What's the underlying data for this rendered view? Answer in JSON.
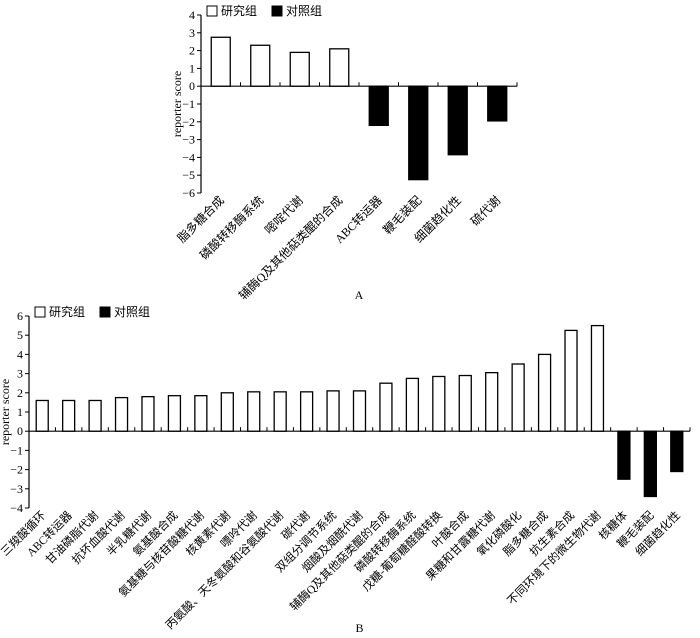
{
  "legend": {
    "study": "研究组",
    "control": "对照组"
  },
  "chart_data": [
    {
      "type": "bar",
      "panel_label": "A",
      "ylabel": "reporter score",
      "ylim": [
        -6,
        4
      ],
      "yticks": [
        4,
        3,
        2,
        1,
        0,
        -1,
        -2,
        -3,
        -4,
        -5,
        -6
      ],
      "categories": [
        "脂多糖合成",
        "磷酸转移酶系统",
        "嘧啶代谢",
        "辅酶Q及其他萜类醌的合成",
        "ABC转运器",
        "鞭毛装配",
        "细菌趋化性",
        "硫代谢"
      ],
      "values": [
        2.75,
        2.3,
        1.9,
        2.1,
        -2.2,
        -5.25,
        -3.85,
        -1.95
      ],
      "groups": [
        "研究组",
        "研究组",
        "研究组",
        "研究组",
        "对照组",
        "对照组",
        "对照组",
        "对照组"
      ],
      "legend_position": "top-left"
    },
    {
      "type": "bar",
      "panel_label": "B",
      "ylabel": "reporter score",
      "ylim": [
        -4,
        6
      ],
      "yticks": [
        6,
        5,
        4,
        3,
        2,
        1,
        0,
        -1,
        -2,
        -3,
        -4
      ],
      "categories": [
        "三羧酸循环",
        "ABC转运器",
        "甘油磷脂代谢",
        "抗坏血酸代谢",
        "半乳糖代谢",
        "氨基酸合成",
        "氨基糖与核苷酸糖代谢",
        "核黄素代谢",
        "嘌呤代谢",
        "丙氨酸、天冬氨酸和谷氨酸代谢",
        "碳代谢",
        "双组分调节系统",
        "烟酸及烟酰代谢",
        "辅酶Q及其他萜类醌的合成",
        "磷酸转移酶系统",
        "戊糖-葡萄糖醛酸转换",
        "叶酸合成",
        "果糖和甘露糖代谢",
        "氧化磷酸化",
        "脂多糖合成",
        "抗生素合成",
        "不同环境下的微生物代谢",
        "核糖体",
        "鞭毛装配",
        "细菌趋化性"
      ],
      "values": [
        1.6,
        1.6,
        1.6,
        1.75,
        1.8,
        1.85,
        1.85,
        2.0,
        2.05,
        2.05,
        2.05,
        2.1,
        2.1,
        2.5,
        2.75,
        2.85,
        2.9,
        3.05,
        3.5,
        4.0,
        5.25,
        5.5,
        -2.5,
        -3.4,
        -2.1
      ],
      "legend_position": "top-left"
    }
  ]
}
